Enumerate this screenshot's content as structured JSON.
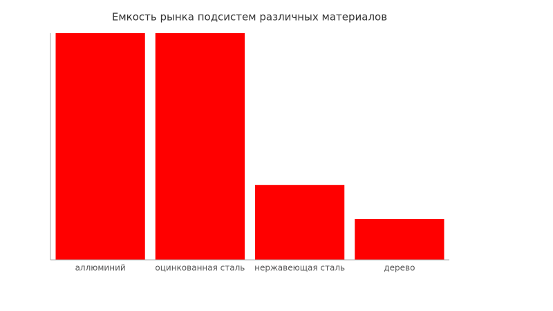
{
  "chart_data": {
    "type": "bar",
    "title": "Емкость рынка подсистем различных материалов",
    "categories": [
      "аллюминий",
      "оцинкованная сталь",
      "нержавеющая сталь",
      "дерево"
    ],
    "values": [
      100,
      100,
      33,
      18
    ],
    "color": "#ff0000",
    "ylim": [
      0,
      100
    ],
    "grid": false
  }
}
